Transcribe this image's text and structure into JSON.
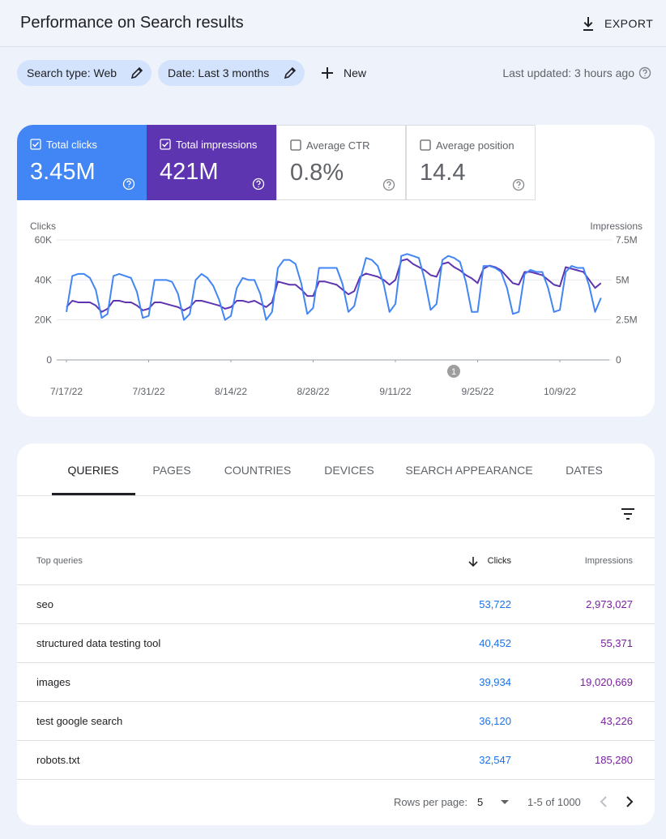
{
  "header": {
    "title": "Performance on Search results",
    "export": "EXPORT"
  },
  "toolbar": {
    "search_type": "Search type: Web",
    "date": "Date: Last 3 months",
    "new": "New",
    "last_updated": "Last updated: 3 hours ago"
  },
  "metrics": [
    {
      "label": "Total clicks",
      "value": "3.45M"
    },
    {
      "label": "Total impressions",
      "value": "421M"
    },
    {
      "label": "Average CTR",
      "value": "0.8%"
    },
    {
      "label": "Average position",
      "value": "14.4"
    }
  ],
  "chart_data": {
    "type": "line",
    "y_label": "Clicks",
    "y2_label": "Impressions",
    "x": [
      "7/17/22",
      "7/18/22",
      "7/19/22",
      "7/20/22",
      "7/21/22",
      "7/22/22",
      "7/23/22",
      "7/24/22",
      "7/25/22",
      "7/26/22",
      "7/27/22",
      "7/28/22",
      "7/29/22",
      "7/30/22",
      "7/31/22",
      "8/1/22",
      "8/2/22",
      "8/3/22",
      "8/4/22",
      "8/5/22",
      "8/6/22",
      "8/7/22",
      "8/8/22",
      "8/9/22",
      "8/10/22",
      "8/11/22",
      "8/12/22",
      "8/13/22",
      "8/14/22",
      "8/15/22",
      "8/16/22",
      "8/17/22",
      "8/18/22",
      "8/19/22",
      "8/20/22",
      "8/21/22",
      "8/22/22",
      "8/23/22",
      "8/24/22",
      "8/25/22",
      "8/26/22",
      "8/27/22",
      "8/28/22",
      "8/29/22",
      "8/30/22",
      "8/31/22",
      "9/1/22",
      "9/2/22",
      "9/3/22",
      "9/4/22",
      "9/5/22",
      "9/6/22",
      "9/7/22",
      "9/8/22",
      "9/9/22",
      "9/10/22",
      "9/11/22",
      "9/12/22",
      "9/13/22",
      "9/14/22",
      "9/15/22",
      "9/16/22",
      "9/17/22",
      "9/18/22",
      "9/19/22",
      "9/20/22",
      "9/21/22",
      "9/22/22",
      "9/23/22",
      "9/24/22",
      "9/25/22",
      "9/26/22",
      "9/27/22",
      "9/28/22",
      "9/29/22",
      "9/30/22",
      "10/1/22",
      "10/2/22",
      "10/3/22",
      "10/4/22",
      "10/5/22",
      "10/6/22",
      "10/7/22",
      "10/8/22",
      "10/9/22",
      "10/10/22",
      "10/11/22",
      "10/12/22",
      "10/13/22",
      "10/14/22",
      "10/15/22",
      "10/16/22"
    ],
    "xticks": [
      "7/17/22",
      "7/31/22",
      "8/14/22",
      "8/28/22",
      "9/11/22",
      "9/25/22",
      "10/9/22"
    ],
    "ylim": [
      0,
      60000
    ],
    "yticks": [
      0,
      {
        "value": 20000,
        "label": "20K"
      },
      {
        "value": 40000,
        "label": "40K"
      },
      {
        "value": 60000,
        "label": "60K"
      }
    ],
    "y2lim": [
      0,
      7500000
    ],
    "y2ticks": [
      0,
      {
        "value": 2500000,
        "label": "2.5M"
      },
      {
        "value": 5000000,
        "label": "5M"
      },
      {
        "value": 7500000,
        "label": "7.5M"
      }
    ],
    "grid": true,
    "annotations": [
      "1"
    ],
    "series": [
      {
        "color": "#4285f4",
        "values": [
          24000,
          42000,
          43000,
          43000,
          41000,
          35000,
          21000,
          23000,
          42000,
          43000,
          42000,
          41000,
          34000,
          21000,
          22000,
          40000,
          40000,
          40000,
          39000,
          33000,
          20000,
          23000,
          40000,
          43000,
          41000,
          37000,
          30000,
          20000,
          22000,
          36000,
          41000,
          40000,
          40000,
          33000,
          20000,
          24000,
          46000,
          50000,
          50000,
          48000,
          38000,
          23000,
          26000,
          46000,
          46000,
          46000,
          46000,
          38000,
          24000,
          27000,
          40000,
          51000,
          50000,
          47000,
          38000,
          24000,
          28000,
          52000,
          53000,
          52000,
          51000,
          40000,
          25000,
          28000,
          50000,
          52000,
          51000,
          49000,
          39000,
          24000,
          24000,
          47000,
          47000,
          46000,
          44000,
          36000,
          23000,
          24000,
          43000,
          45000,
          44000,
          44000,
          36000,
          24000,
          25000,
          44000,
          47000,
          46000,
          46000,
          37000,
          24000,
          31000
        ]
      },
      {
        "color": "#5e35b1",
        "axis": "y2",
        "values": [
          3300000,
          3700000,
          3600000,
          3600000,
          3600000,
          3400000,
          3000000,
          3200000,
          3700000,
          3700000,
          3600000,
          3600000,
          3400000,
          3100000,
          3200000,
          3600000,
          3600000,
          3500000,
          3400000,
          3300000,
          3100000,
          3300000,
          3700000,
          3700000,
          3600000,
          3500000,
          3400000,
          3200000,
          3300000,
          3700000,
          3700000,
          3600000,
          3700000,
          3500000,
          3300000,
          3600000,
          4900000,
          4800000,
          4700000,
          4700000,
          4400000,
          4000000,
          4000000,
          4900000,
          4900000,
          4800000,
          4700000,
          4400000,
          4100000,
          4300000,
          5200000,
          5400000,
          5300000,
          5200000,
          5000000,
          4700000,
          5000000,
          6200000,
          6300000,
          6000000,
          5800000,
          5600000,
          5300000,
          5200000,
          6000000,
          6100000,
          5800000,
          5600000,
          5300000,
          5100000,
          4800000,
          5700000,
          5900000,
          5800000,
          5600000,
          5200000,
          4800000,
          4700000,
          5500000,
          5500000,
          5400000,
          5300000,
          5000000,
          4700000,
          4600000,
          5800000,
          5700000,
          5600000,
          5500000,
          5000000,
          4500000,
          4800000
        ]
      }
    ]
  },
  "tabs": [
    "QUERIES",
    "PAGES",
    "COUNTRIES",
    "DEVICES",
    "SEARCH APPEARANCE",
    "DATES"
  ],
  "table": {
    "columns": [
      "Top queries",
      "Clicks",
      "Impressions"
    ],
    "rows": [
      [
        "seo",
        "53,722",
        "2,973,027"
      ],
      [
        "structured data testing tool",
        "40,452",
        "55,371"
      ],
      [
        "images",
        "39,934",
        "19,020,669"
      ],
      [
        "test google search",
        "36,120",
        "43,226"
      ],
      [
        "robots.txt",
        "32,547",
        "185,280"
      ]
    ]
  },
  "pagination": {
    "rows_per_page_label": "Rows per page:",
    "rows_per_page": "5",
    "range": "1-5 of 1000"
  }
}
